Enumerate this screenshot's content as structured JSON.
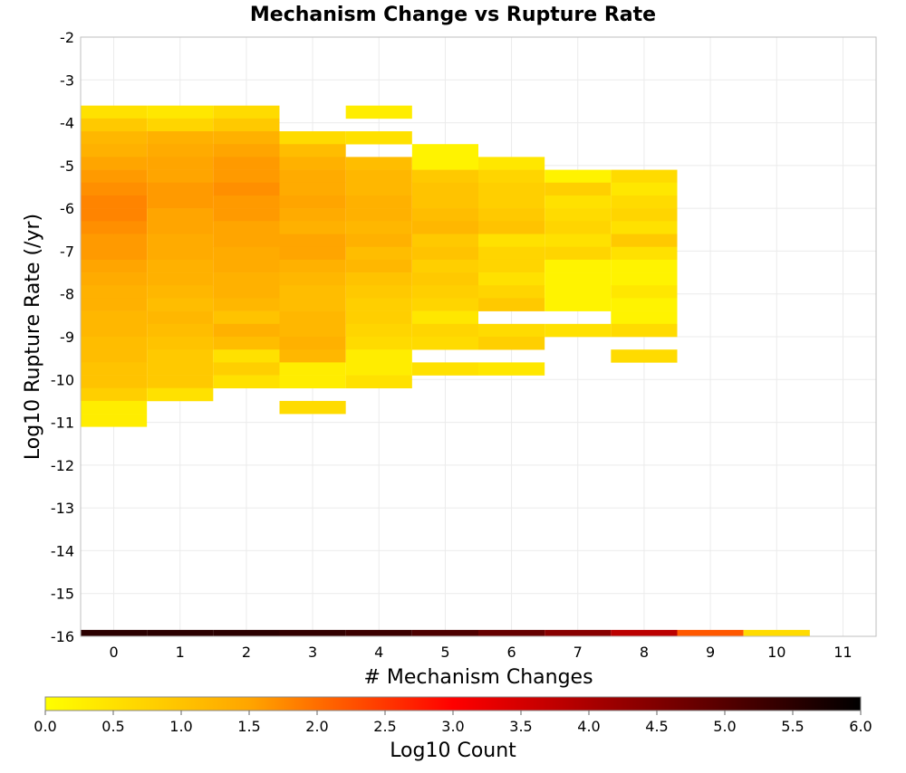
{
  "chart_data": {
    "type": "heatmap",
    "title": "Mechanism Change vs Rupture Rate",
    "xlabel": "# Mechanism Changes",
    "ylabel": "Log10 Rupture Rate (/yr)",
    "x_ticks": [
      "0",
      "1",
      "2",
      "3",
      "4",
      "5",
      "6",
      "7",
      "8",
      "9",
      "10",
      "11"
    ],
    "y_ticks": [
      "-2",
      "-3",
      "-4",
      "-5",
      "-6",
      "-7",
      "-8",
      "-9",
      "-10",
      "-11",
      "-12",
      "-13",
      "-14",
      "-15",
      "-16"
    ],
    "xlim": [
      -0.5,
      11.5
    ],
    "ylim": [
      -16,
      -2
    ],
    "grid": true,
    "bin_height": 0.3,
    "colorbar": {
      "label": "Log10 Count",
      "range": [
        0,
        6
      ],
      "ticks": [
        "0.0",
        "0.5",
        "1.0",
        "1.5",
        "2.0",
        "2.5",
        "3.0",
        "3.5",
        "4.0",
        "4.5",
        "5.0",
        "5.5",
        "6.0"
      ],
      "colors": [
        "#ffff00",
        "#ffa500",
        "#ff0000",
        "#800000",
        "#000000"
      ]
    },
    "columns": [
      {
        "x": 0,
        "start": -3.6,
        "values": [
          0.5,
          0.9,
          1.2,
          1.3,
          1.5,
          1.6,
          1.7,
          1.8,
          1.8,
          1.7,
          1.6,
          1.6,
          1.5,
          1.4,
          1.3,
          1.3,
          1.2,
          1.2,
          1.1,
          1.1,
          1.0,
          1.0,
          0.8,
          0.3,
          0.3
        ]
      },
      {
        "x": 1,
        "start": -3.6,
        "values": [
          0.4,
          0.7,
          1.3,
          1.4,
          1.5,
          1.5,
          1.6,
          1.6,
          1.5,
          1.5,
          1.4,
          1.4,
          1.3,
          1.3,
          1.2,
          1.1,
          1.2,
          1.1,
          1.0,
          0.9,
          0.9,
          0.9,
          0.5
        ]
      },
      {
        "x": 2,
        "start": -3.6,
        "values": [
          0.6,
          0.9,
          1.3,
          1.5,
          1.6,
          1.6,
          1.7,
          1.6,
          1.6,
          1.5,
          1.5,
          1.4,
          1.4,
          1.3,
          1.3,
          1.2,
          1.0,
          1.3,
          1.1,
          0.5,
          0.8,
          0.5
        ]
      },
      {
        "x": 3,
        "start": -4.2,
        "values": [
          0.6,
          1.1,
          1.3,
          1.4,
          1.4,
          1.5,
          1.4,
          1.3,
          1.5,
          1.5,
          1.3,
          1.2,
          1.1,
          1.1,
          1.2,
          1.2,
          1.3,
          1.2,
          0.3,
          0.3,
          null,
          0.6
        ]
      },
      {
        "x": 4,
        "start": -3.6,
        "values": [
          0.3,
          null,
          0.5,
          null,
          1.1,
          1.2,
          1.2,
          1.3,
          1.3,
          1.2,
          1.3,
          1.1,
          1.2,
          1.0,
          0.9,
          0.8,
          0.8,
          0.7,
          0.6,
          0.3,
          0.3,
          0.5
        ]
      },
      {
        "x": 5,
        "start": -4.5,
        "values": [
          0.2,
          0.2,
          0.9,
          1.0,
          1.0,
          1.1,
          1.2,
          0.9,
          1.0,
          0.8,
          0.9,
          0.8,
          0.7,
          0.4,
          0.7,
          0.6,
          null,
          0.5
        ]
      },
      {
        "x": 6,
        "start": -4.8,
        "values": [
          0.4,
          0.7,
          0.8,
          0.8,
          0.9,
          1.0,
          0.5,
          0.7,
          0.7,
          0.5,
          0.7,
          0.9,
          null,
          0.6,
          0.8,
          null,
          0.4
        ]
      },
      {
        "x": 7,
        "start": -5.1,
        "values": [
          0.2,
          0.8,
          0.5,
          0.6,
          0.7,
          0.5,
          0.7,
          0.2,
          0.2,
          0.2,
          0.2,
          null,
          0.5
        ]
      },
      {
        "x": 8,
        "start": -5.1,
        "values": [
          0.6,
          0.4,
          0.6,
          0.7,
          0.5,
          0.9,
          0.5,
          0.2,
          0.2,
          0.4,
          0.2,
          0.2,
          0.6,
          null,
          0.6
        ]
      }
    ],
    "bottom_row": {
      "y": -16,
      "values": [
        5.5,
        5.5,
        5.5,
        5.4,
        5.3,
        5.1,
        4.8,
        4.4,
        3.8,
        2.2,
        0.6,
        null
      ]
    }
  }
}
